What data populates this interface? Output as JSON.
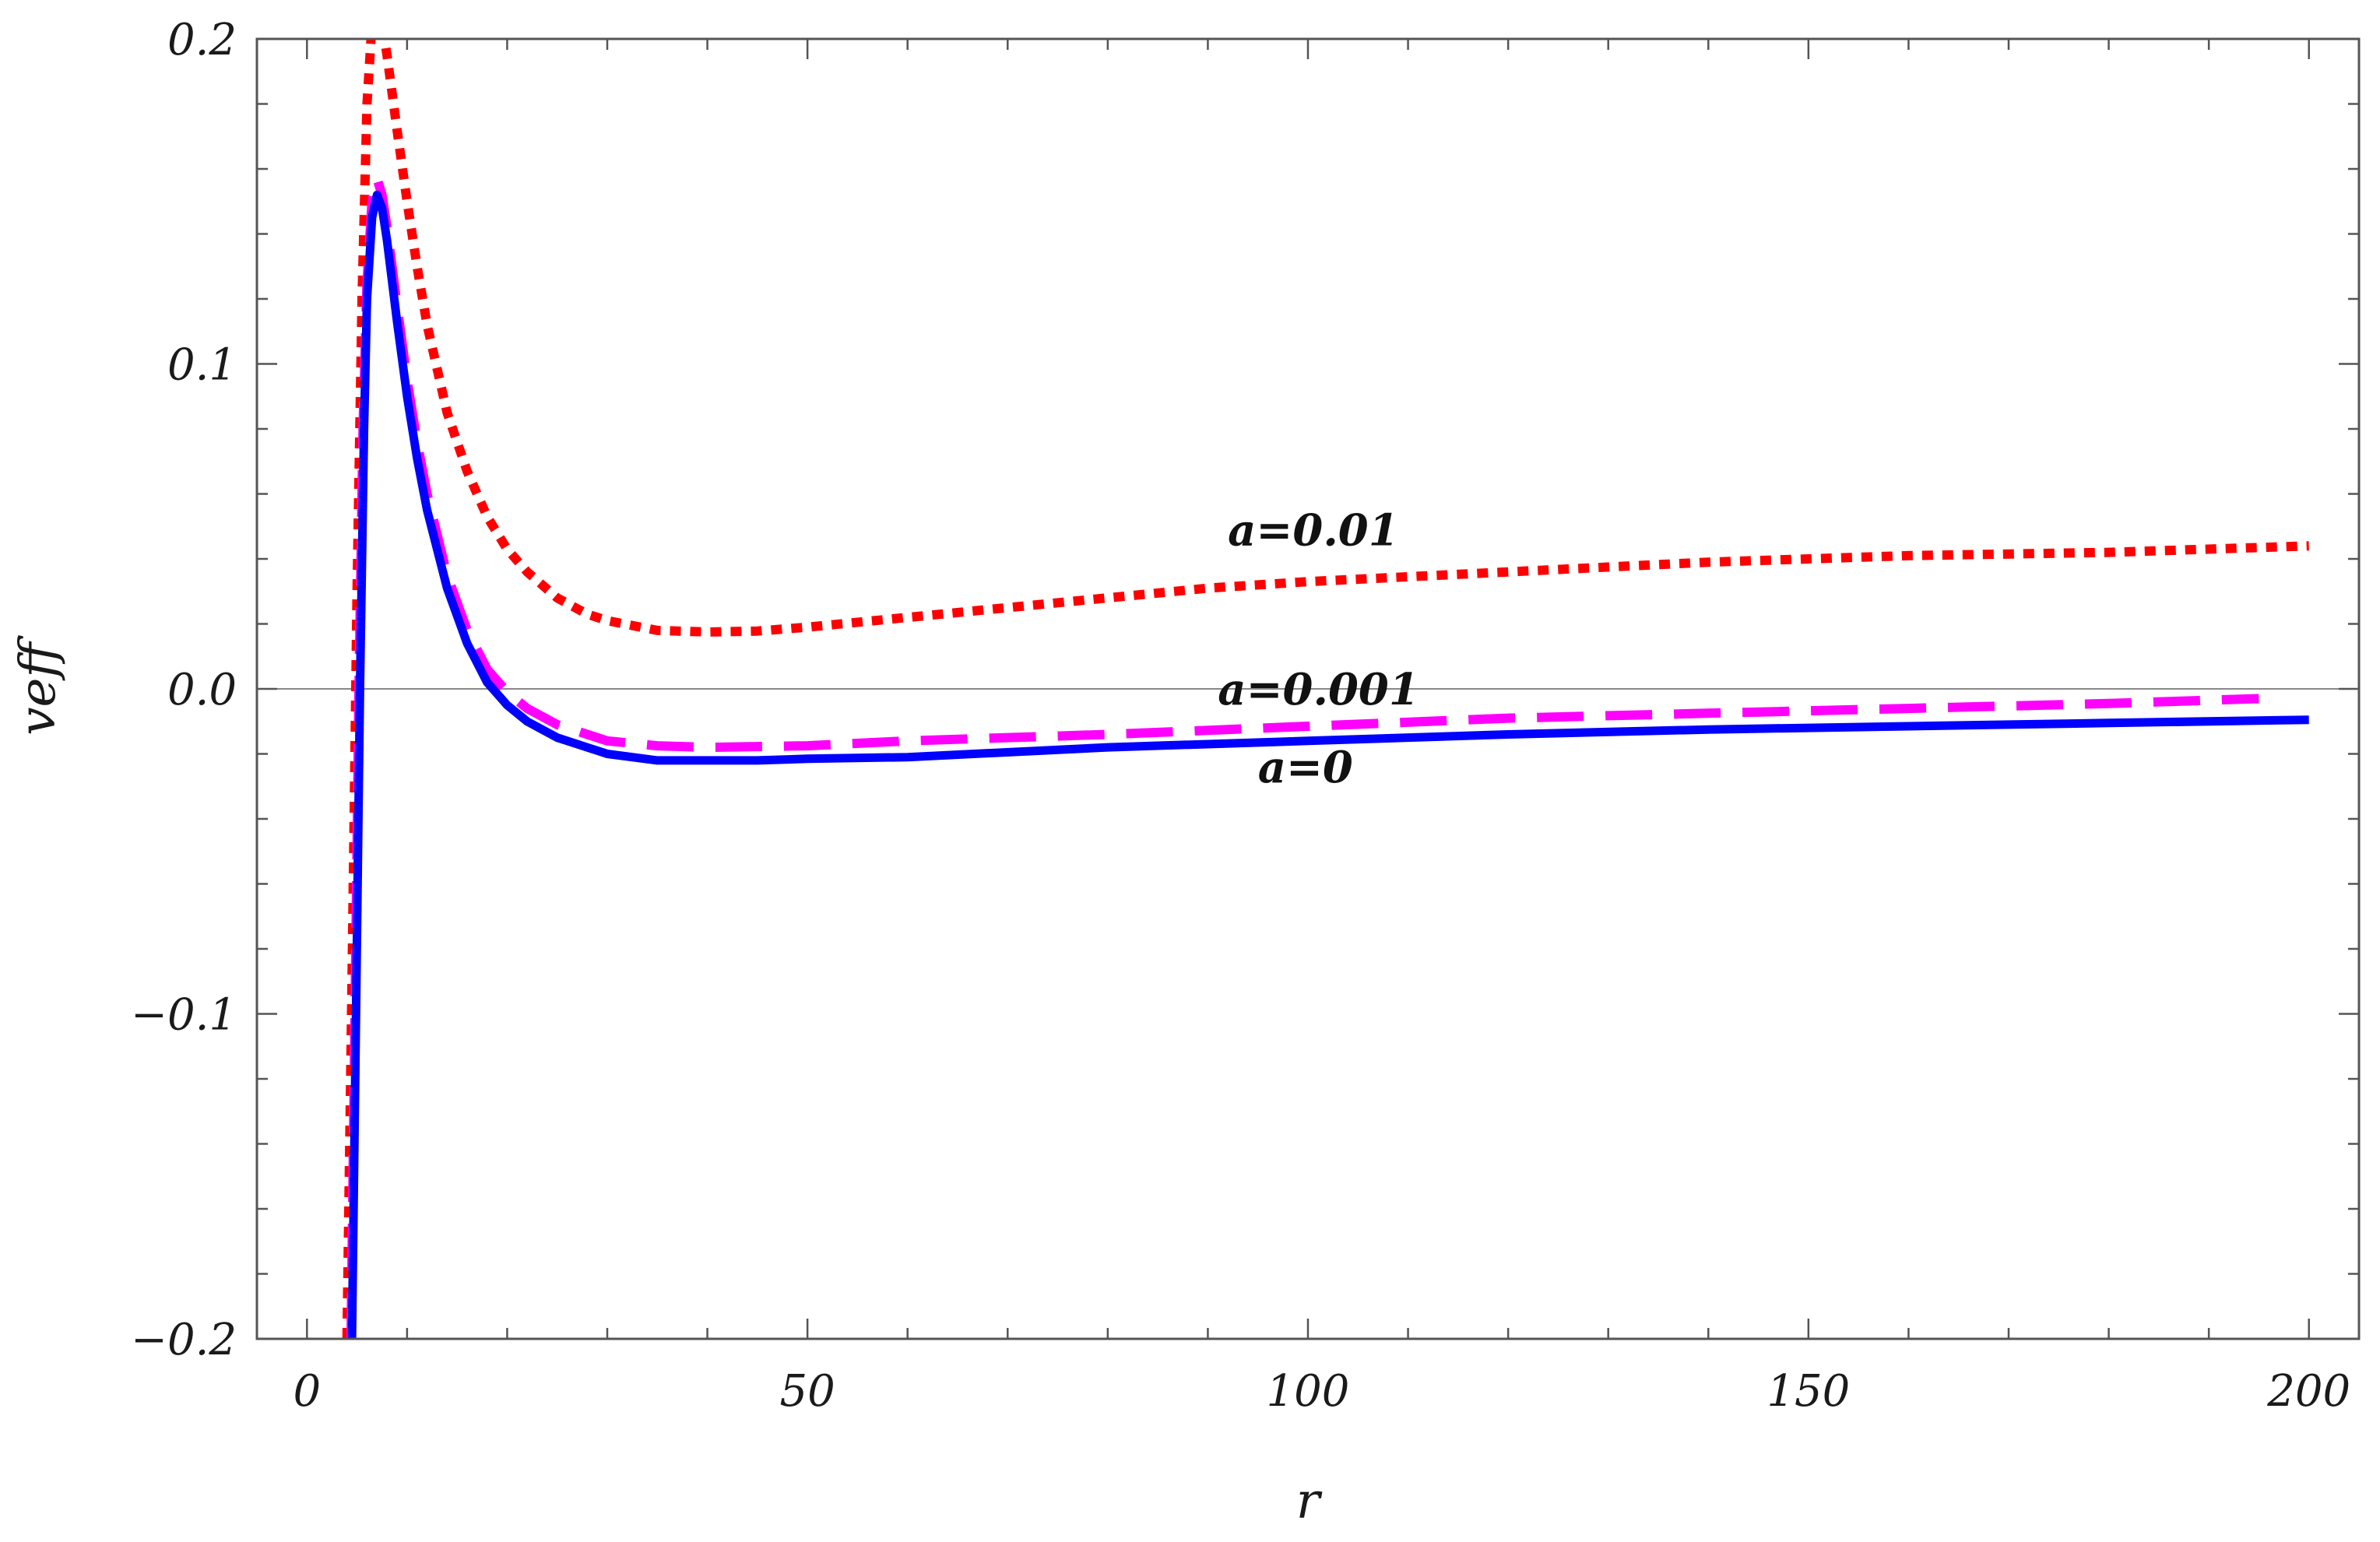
{
  "chart_data": {
    "type": "line",
    "xlabel": "r",
    "ylabel": "veff",
    "xlim": [
      -5,
      205
    ],
    "ylim": [
      -0.2,
      0.2
    ],
    "x_ticks": [
      "0",
      "50",
      "100",
      "150",
      "200"
    ],
    "y_ticks": [
      "−0.2",
      "−0.1",
      "0.0",
      "0.1",
      "0.2"
    ],
    "zero_line": true,
    "series": [
      {
        "name": "a=0.01",
        "color": "#ff0000",
        "style": "dotted",
        "label_at": [
          92,
          0.049
        ],
        "x": [
          4.0,
          4.5,
          5.0,
          5.5,
          6.0,
          6.5,
          7.0,
          7.5,
          8,
          9,
          10,
          11,
          12,
          14,
          16,
          18,
          20,
          22,
          25,
          28,
          30,
          35,
          40,
          45,
          50,
          60,
          70,
          80,
          90,
          100,
          120,
          140,
          160,
          180,
          200
        ],
        "y": [
          -0.2,
          -0.09,
          0.03,
          0.12,
          0.18,
          0.205,
          0.21,
          0.205,
          0.195,
          0.172,
          0.15,
          0.13,
          0.112,
          0.085,
          0.067,
          0.053,
          0.043,
          0.036,
          0.028,
          0.023,
          0.021,
          0.018,
          0.0175,
          0.0178,
          0.019,
          0.022,
          0.025,
          0.028,
          0.031,
          0.033,
          0.036,
          0.039,
          0.041,
          0.042,
          0.044
        ]
      },
      {
        "name": "a=0.001",
        "color": "#ff00ff",
        "style": "dashed",
        "label_at": [
          91,
          0.0
        ],
        "x": [
          4.4,
          4.8,
          5.2,
          5.6,
          6.0,
          6.5,
          7.0,
          7.5,
          8,
          9,
          10,
          11,
          12,
          14,
          16,
          18,
          20,
          22,
          25,
          30,
          35,
          40,
          50,
          60,
          80,
          100,
          120,
          140,
          160,
          180,
          195
        ],
        "y": [
          -0.2,
          -0.1,
          0.0,
          0.08,
          0.125,
          0.15,
          0.157,
          0.152,
          0.142,
          0.118,
          0.095,
          0.076,
          0.06,
          0.035,
          0.018,
          0.006,
          -0.001,
          -0.006,
          -0.011,
          -0.016,
          -0.0175,
          -0.018,
          -0.0175,
          -0.016,
          -0.014,
          -0.0115,
          -0.009,
          -0.0075,
          -0.006,
          -0.0045,
          -0.003
        ]
      },
      {
        "name": "a=0",
        "color": "#0000ff",
        "style": "solid",
        "label_at": [
          95,
          -0.024
        ],
        "x": [
          4.5,
          4.9,
          5.3,
          5.7,
          6.0,
          6.5,
          7.0,
          7.5,
          8,
          9,
          10,
          11,
          12,
          14,
          16,
          18,
          20,
          22,
          25,
          30,
          35,
          40,
          45,
          50,
          60,
          80,
          100,
          120,
          140,
          160,
          180,
          200
        ],
        "y": [
          -0.2,
          -0.1,
          0.0,
          0.08,
          0.12,
          0.145,
          0.152,
          0.148,
          0.138,
          0.113,
          0.09,
          0.071,
          0.055,
          0.031,
          0.014,
          0.002,
          -0.005,
          -0.01,
          -0.015,
          -0.02,
          -0.022,
          -0.022,
          -0.022,
          -0.0215,
          -0.021,
          -0.018,
          -0.016,
          -0.014,
          -0.0125,
          -0.0115,
          -0.0105,
          -0.0095
        ]
      }
    ]
  }
}
